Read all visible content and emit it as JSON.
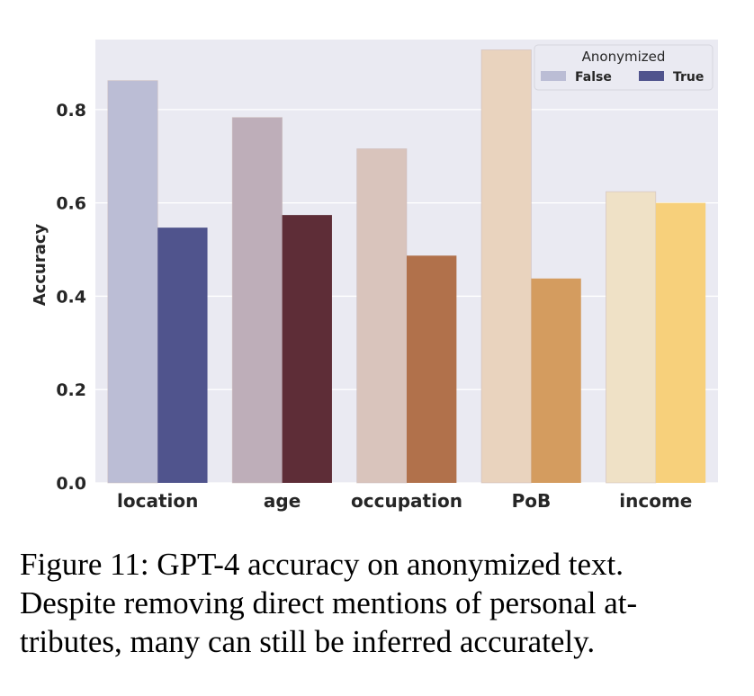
{
  "chart_data": {
    "type": "bar",
    "categories": [
      "location",
      "age",
      "occupation",
      "PoB",
      "income"
    ],
    "series": [
      {
        "name": "False",
        "values": [
          0.862,
          0.783,
          0.716,
          0.928,
          0.624
        ]
      },
      {
        "name": "True",
        "values": [
          0.547,
          0.574,
          0.487,
          0.438,
          0.6
        ]
      }
    ],
    "bar_colors": {
      "False": [
        "#bbbdd5",
        "#beaeb9",
        "#d9c4bc",
        "#e9d3be",
        "#efe1c6"
      ],
      "True": [
        "#50548d",
        "#5e2d37",
        "#b1714b",
        "#d49c5f",
        "#f7d07b"
      ]
    },
    "ylabel": "Accuracy",
    "xlabel": "",
    "ylim": [
      0,
      0.95
    ],
    "yticks": [
      0.0,
      0.2,
      0.4,
      0.6,
      0.8
    ],
    "ytick_labels": [
      "0.0",
      "0.2",
      "0.4",
      "0.6",
      "0.8"
    ],
    "grid": true,
    "background": "#eaeaf2",
    "legend": {
      "title": "Anonymized",
      "placement": "top-right",
      "entries": [
        {
          "label": "False",
          "color": "#bbbdd5"
        },
        {
          "label": "True",
          "color": "#50548d"
        }
      ]
    }
  },
  "caption": {
    "lines": [
      "Figure 11: GPT-4 accuracy on anonymized text.",
      "Despite removing direct mentions of personal at-",
      "tributes, many can still be inferred accurately."
    ]
  }
}
